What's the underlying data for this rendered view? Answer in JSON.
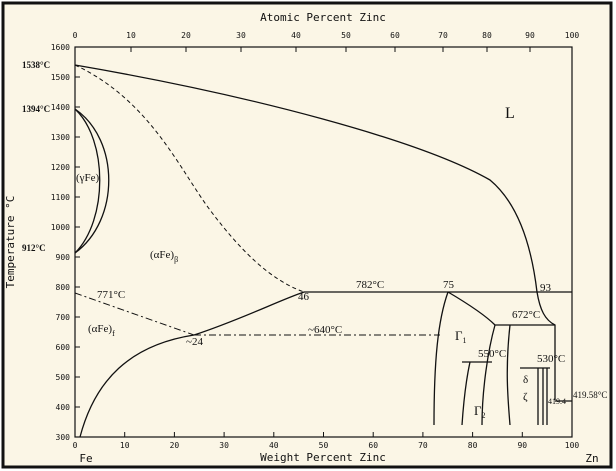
{
  "top_axis": {
    "title": "Atomic Percent Zinc",
    "ticks": [
      "0",
      "10",
      "20",
      "30",
      "40",
      "50",
      "60",
      "70",
      "80",
      "90",
      "100"
    ]
  },
  "bottom_axis": {
    "title": "Weight Percent Zinc",
    "ticks": [
      "0",
      "10",
      "20",
      "30",
      "40",
      "50",
      "60",
      "70",
      "80",
      "90",
      "100"
    ],
    "left_end": "Fe",
    "right_end": "Zn"
  },
  "left_axis": {
    "title": "Temperature °C",
    "ticks": [
      "1600",
      "1500",
      "1400",
      "1300",
      "1200",
      "1100",
      "1000",
      "900",
      "800",
      "700",
      "600",
      "500",
      "400",
      "300"
    ]
  },
  "labels": {
    "t1538": "1538°C",
    "t1394": "1394°C",
    "t912": "912°C",
    "t771": "771°C",
    "liquid": "L",
    "gamma_fe": "(γFe)",
    "alpha_fe": "(αFe)",
    "alpha_sub1": "β",
    "alpha_sub2": "f",
    "t782": "782°C",
    "c75": "75",
    "c93": "93",
    "c46": "46",
    "c24": "~24",
    "t640": "~640°C",
    "gamma1": "Γ",
    "gamma1_sub": "1",
    "gamma2": "Γ",
    "gamma2_sub": "2",
    "t672": "672°C",
    "t550": "550°C",
    "t530": "530°C",
    "delta": "δ",
    "zeta": "ζ",
    "t41958": "419.58°C",
    "t4194": "419.4"
  }
}
